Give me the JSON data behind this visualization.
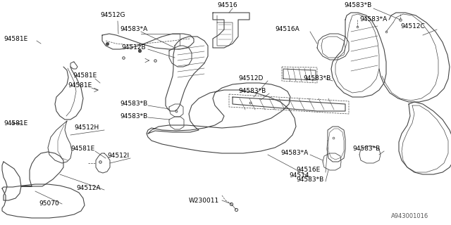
{
  "bg_color": "#ffffff",
  "line_color": "#444444",
  "text_color": "#000000",
  "diagram_label": "A943001016",
  "figsize": [
    6.4,
    3.2
  ],
  "dpi": 100,
  "xlim": [
    0,
    640
  ],
  "ylim": [
    0,
    320
  ]
}
